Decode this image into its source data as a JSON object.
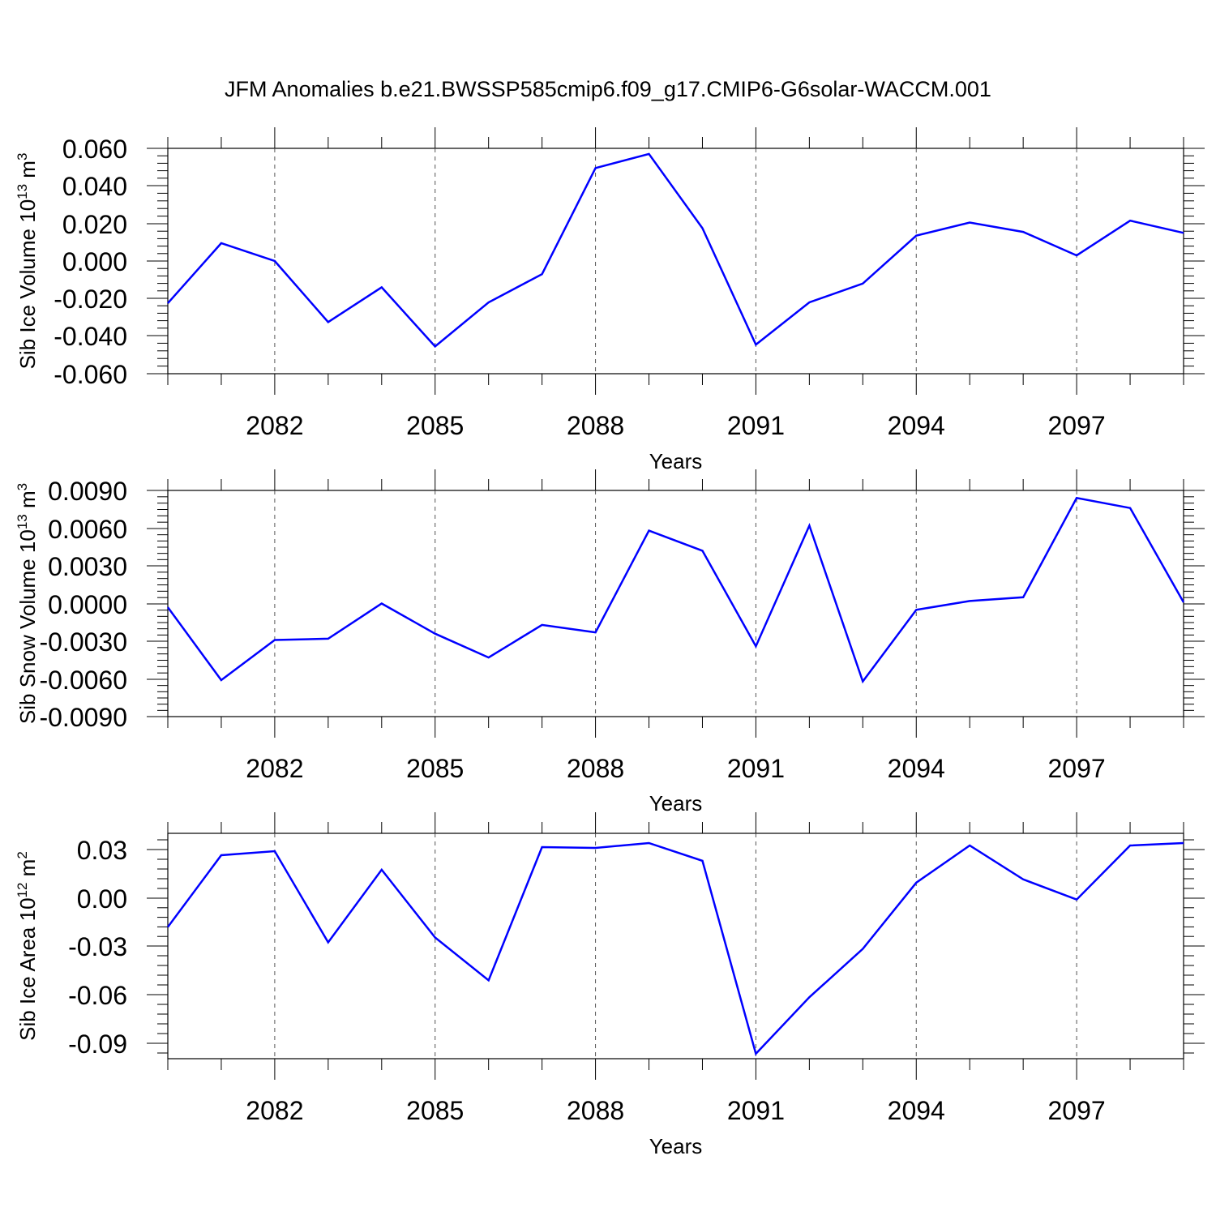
{
  "title": "JFM Anomalies b.e21.BWSSP585cmip6.f09_g17.CMIP6-G6solar-WACCM.001",
  "line_color": "#0000ff",
  "chart_data": [
    {
      "type": "line",
      "xlabel": "Years",
      "ylabel": {
        "prefix": "Sib Ice Volume 10",
        "exponent": "13",
        "unit": " m",
        "unit_exponent": "3"
      },
      "x": [
        2080,
        2081,
        2082,
        2083,
        2084,
        2085,
        2086,
        2087,
        2088,
        2089,
        2090,
        2091,
        2092,
        2093,
        2094,
        2095,
        2096,
        2097,
        2098,
        2099
      ],
      "xlim": [
        2080,
        2099
      ],
      "xticks": [
        "2082",
        "2085",
        "2088",
        "2091",
        "2094",
        "2097"
      ],
      "ylim": [
        -0.06,
        0.06
      ],
      "yticks": [
        "0.060",
        "0.040",
        "0.020",
        "0.000",
        "-0.020",
        "-0.040",
        "-0.060"
      ],
      "series": [
        {
          "values": [
            -0.0225,
            0.0095,
            0.0,
            -0.0325,
            -0.014,
            -0.0455,
            -0.022,
            -0.007,
            0.0495,
            0.057,
            0.0175,
            -0.0445,
            -0.022,
            -0.012,
            0.0135,
            0.0205,
            0.0155,
            0.003,
            0.0215,
            0.015
          ]
        }
      ]
    },
    {
      "type": "line",
      "xlabel": "Years",
      "ylabel": {
        "prefix": "Sib Snow Volume 10",
        "exponent": "13",
        "unit": " m",
        "unit_exponent": "3"
      },
      "x": [
        2080,
        2081,
        2082,
        2083,
        2084,
        2085,
        2086,
        2087,
        2088,
        2089,
        2090,
        2091,
        2092,
        2093,
        2094,
        2095,
        2096,
        2097,
        2098,
        2099
      ],
      "xlim": [
        2080,
        2099
      ],
      "xticks": [
        "2082",
        "2085",
        "2088",
        "2091",
        "2094",
        "2097"
      ],
      "ylim": [
        -0.009,
        0.009
      ],
      "yticks": [
        "0.0090",
        "0.0060",
        "0.0030",
        "0.0000",
        "-0.0030",
        "-0.0060",
        "-0.0090"
      ],
      "series": [
        {
          "values": [
            -0.0003,
            -0.0061,
            -0.0029,
            -0.0028,
            0.0,
            -0.0024,
            -0.0043,
            -0.0017,
            -0.0023,
            0.0058,
            0.0042,
            -0.0034,
            0.0062,
            -0.0062,
            -0.0005,
            0.0002,
            0.0005,
            0.0084,
            0.0076,
            0.0001
          ]
        }
      ]
    },
    {
      "type": "line",
      "xlabel": "Years",
      "ylabel": {
        "prefix": "Sib Ice Area 10",
        "exponent": "12",
        "unit": " m",
        "unit_exponent": "2"
      },
      "x": [
        2080,
        2081,
        2082,
        2083,
        2084,
        2085,
        2086,
        2087,
        2088,
        2089,
        2090,
        2091,
        2092,
        2093,
        2094,
        2095,
        2096,
        2097,
        2098,
        2099
      ],
      "xlim": [
        2080,
        2099
      ],
      "xticks": [
        "2082",
        "2085",
        "2088",
        "2091",
        "2094",
        "2097"
      ],
      "ylim": [
        -0.1,
        0.04
      ],
      "yticks": [
        "0.03",
        "0.00",
        "-0.03",
        "-0.06",
        "-0.09"
      ],
      "series": [
        {
          "values": [
            -0.018,
            0.0265,
            0.029,
            -0.0275,
            0.0175,
            -0.0245,
            -0.051,
            0.0315,
            0.031,
            0.034,
            0.023,
            -0.0965,
            -0.0615,
            -0.0315,
            0.0095,
            0.0325,
            0.0115,
            -0.001,
            0.0325,
            0.034
          ]
        }
      ]
    }
  ]
}
